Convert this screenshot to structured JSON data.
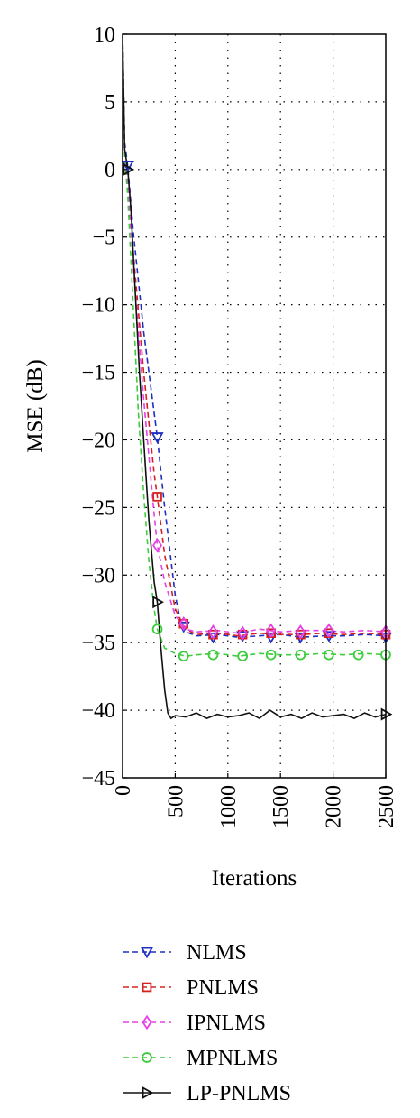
{
  "chart_data": {
    "type": "line",
    "xlabel": "Iterations",
    "ylabel": "MSE (dB)",
    "xlim": [
      0,
      2500
    ],
    "ylim": [
      -45,
      10
    ],
    "x_ticks": [
      "0",
      "500",
      "1000",
      "1500",
      "2000",
      "2500"
    ],
    "y_ticks": [
      "10",
      "5",
      "0",
      "−5",
      "−10",
      "−15",
      "−20",
      "−25",
      "−30",
      "−35",
      "−40",
      "−45"
    ],
    "grid": true,
    "legend_position": "below",
    "series": [
      {
        "name": "NLMS",
        "color": "#1f2fbf",
        "dash": "dashed",
        "marker": "triangle-down",
        "x": [
          0,
          20,
          50,
          100,
          200,
          300,
          330,
          400,
          500,
          560,
          600,
          700,
          900,
          1100,
          1300,
          1500,
          1700,
          1900,
          2100,
          2300,
          2500
        ],
        "y": [
          10,
          2,
          0.2,
          -4.5,
          -12,
          -18,
          -19.8,
          -25,
          -31.5,
          -33.8,
          -34.2,
          -34.5,
          -34.4,
          -34.6,
          -34.5,
          -34.4,
          -34.6,
          -34.5,
          -34.5,
          -34.4,
          -34.5
        ],
        "markers_x": [
          50,
          330,
          580,
          860,
          1140,
          1410,
          1690,
          1960,
          2500
        ],
        "markers_y": [
          0.3,
          -19.8,
          -33.8,
          -34.6,
          -34.5,
          -34.6,
          -34.6,
          -34.5,
          -34.6
        ]
      },
      {
        "name": "PNLMS",
        "color": "#d62020",
        "dash": "dashed",
        "marker": "square",
        "x": [
          0,
          20,
          50,
          100,
          200,
          300,
          330,
          400,
          500,
          560,
          600,
          700,
          900,
          1100,
          1300,
          1500,
          1700,
          1900,
          2100,
          2300,
          2500
        ],
        "y": [
          10,
          1.5,
          -0.5,
          -6,
          -15,
          -22.5,
          -24.2,
          -28.5,
          -32.5,
          -33.5,
          -34,
          -34.4,
          -34.3,
          -34.5,
          -34.3,
          -34.4,
          -34.4,
          -34.3,
          -34.4,
          -34.3,
          -34.4
        ],
        "markers_x": [
          330,
          580,
          860,
          1140,
          1410,
          1690,
          1960,
          2500
        ],
        "markers_y": [
          -24.2,
          -33.6,
          -34.4,
          -34.4,
          -34.3,
          -34.4,
          -34.3,
          -34.4
        ]
      },
      {
        "name": "IPNLMS",
        "color": "#e640e6",
        "dash": "dashed",
        "marker": "diamond",
        "x": [
          0,
          20,
          50,
          100,
          200,
          300,
          330,
          400,
          500,
          560,
          600,
          700,
          900,
          1100,
          1300,
          1500,
          1700,
          1900,
          2100,
          2300,
          2500
        ],
        "y": [
          10,
          1,
          -1,
          -7,
          -17,
          -25.5,
          -27.8,
          -30.5,
          -33,
          -33.6,
          -34,
          -34.2,
          -34.1,
          -34.3,
          -34,
          -34.2,
          -34.1,
          -34.1,
          -34.2,
          -34.1,
          -34.2
        ],
        "markers_x": [
          330,
          580,
          860,
          1140,
          1410,
          1690,
          1960,
          2500
        ],
        "markers_y": [
          -27.8,
          -33.6,
          -34.2,
          -34.3,
          -34.1,
          -34.2,
          -34.1,
          -34.2
        ]
      },
      {
        "name": "MPNLMS",
        "color": "#3ccc3c",
        "dash": "dashed",
        "marker": "circle",
        "x": [
          0,
          20,
          50,
          100,
          150,
          200,
          250,
          300,
          330,
          400,
          500,
          600,
          700,
          900,
          1100,
          1300,
          1500,
          1700,
          1900,
          2100,
          2300,
          2500
        ],
        "y": [
          10,
          1,
          -2,
          -10,
          -18,
          -24,
          -29,
          -32.5,
          -34,
          -35.4,
          -35.8,
          -36,
          -35.9,
          -35.8,
          -36,
          -35.8,
          -35.9,
          -35.9,
          -35.8,
          -35.9,
          -35.8,
          -35.9
        ],
        "markers_x": [
          330,
          580,
          860,
          1140,
          1410,
          1690,
          1960,
          2240,
          2500
        ],
        "markers_y": [
          -34,
          -36,
          -35.9,
          -36,
          -35.9,
          -35.9,
          -35.9,
          -35.9,
          -35.9
        ]
      },
      {
        "name": "LP-PNLMS",
        "color": "#111111",
        "dash": "solid",
        "marker": "triangle-right",
        "x": [
          0,
          20,
          50,
          80,
          120,
          160,
          200,
          250,
          300,
          330,
          360,
          400,
          430,
          460,
          500,
          600,
          700,
          800,
          900,
          1000,
          1100,
          1200,
          1300,
          1400,
          1500,
          1600,
          1700,
          1800,
          1900,
          2000,
          2100,
          2200,
          2300,
          2400,
          2500
        ],
        "y": [
          10,
          1.5,
          0,
          -3,
          -9,
          -15,
          -20,
          -26,
          -30.5,
          -32,
          -35,
          -38.5,
          -40.2,
          -40.6,
          -40.4,
          -40.5,
          -40.2,
          -40.6,
          -40.3,
          -40.5,
          -40.4,
          -40.2,
          -40.6,
          -40.0,
          -40.5,
          -40.3,
          -40.6,
          -40.2,
          -40.5,
          -40.4,
          -40.3,
          -40.6,
          -40.2,
          -40.5,
          -40.3
        ],
        "markers_x": [
          50,
          330,
          2500
        ],
        "markers_y": [
          0,
          -32,
          -40.3
        ]
      }
    ]
  }
}
